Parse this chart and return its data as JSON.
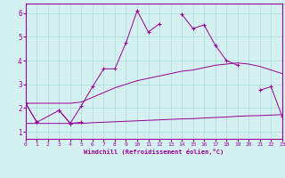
{
  "xlabel": "Windchill (Refroidissement éolien,°C)",
  "background_color": "#d4f0f0",
  "grid_color": "#aadddd",
  "line_color": "#990099",
  "x_values": [
    0,
    1,
    2,
    3,
    4,
    5,
    6,
    7,
    8,
    9,
    10,
    11,
    12,
    13,
    14,
    15,
    16,
    17,
    18,
    19,
    20,
    21,
    22,
    23
  ],
  "series_main": [
    2.2,
    1.4,
    null,
    1.9,
    1.35,
    2.1,
    2.9,
    3.65,
    3.65,
    4.75,
    6.1,
    5.2,
    5.55,
    null,
    5.95,
    5.35,
    5.5,
    4.65,
    4.0,
    3.8,
    null,
    2.75,
    2.9,
    1.65
  ],
  "series_short": [
    2.2,
    1.4,
    null,
    1.9,
    1.35,
    1.4,
    null,
    null,
    null,
    null,
    null,
    null,
    null,
    null,
    null,
    null,
    null,
    null,
    null,
    null,
    null,
    null,
    null,
    null
  ],
  "series_low": [
    1.35,
    1.35,
    1.35,
    1.35,
    1.35,
    1.35,
    1.38,
    1.4,
    1.42,
    1.44,
    1.46,
    1.48,
    1.5,
    1.52,
    1.54,
    1.55,
    1.58,
    1.6,
    1.62,
    1.65,
    1.67,
    1.68,
    1.7,
    1.72
  ],
  "series_high": [
    2.2,
    2.2,
    2.2,
    2.2,
    2.2,
    2.25,
    2.45,
    2.65,
    2.85,
    3.0,
    3.15,
    3.25,
    3.35,
    3.45,
    3.55,
    3.6,
    3.7,
    3.8,
    3.85,
    3.9,
    3.85,
    3.75,
    3.6,
    3.45
  ],
  "ylim": [
    0.7,
    6.4
  ],
  "xlim": [
    0,
    23
  ],
  "yticks": [
    1,
    2,
    3,
    4,
    5,
    6
  ],
  "xticks": [
    0,
    1,
    2,
    3,
    4,
    5,
    6,
    7,
    8,
    9,
    10,
    11,
    12,
    13,
    14,
    15,
    16,
    17,
    18,
    19,
    20,
    21,
    22,
    23
  ]
}
